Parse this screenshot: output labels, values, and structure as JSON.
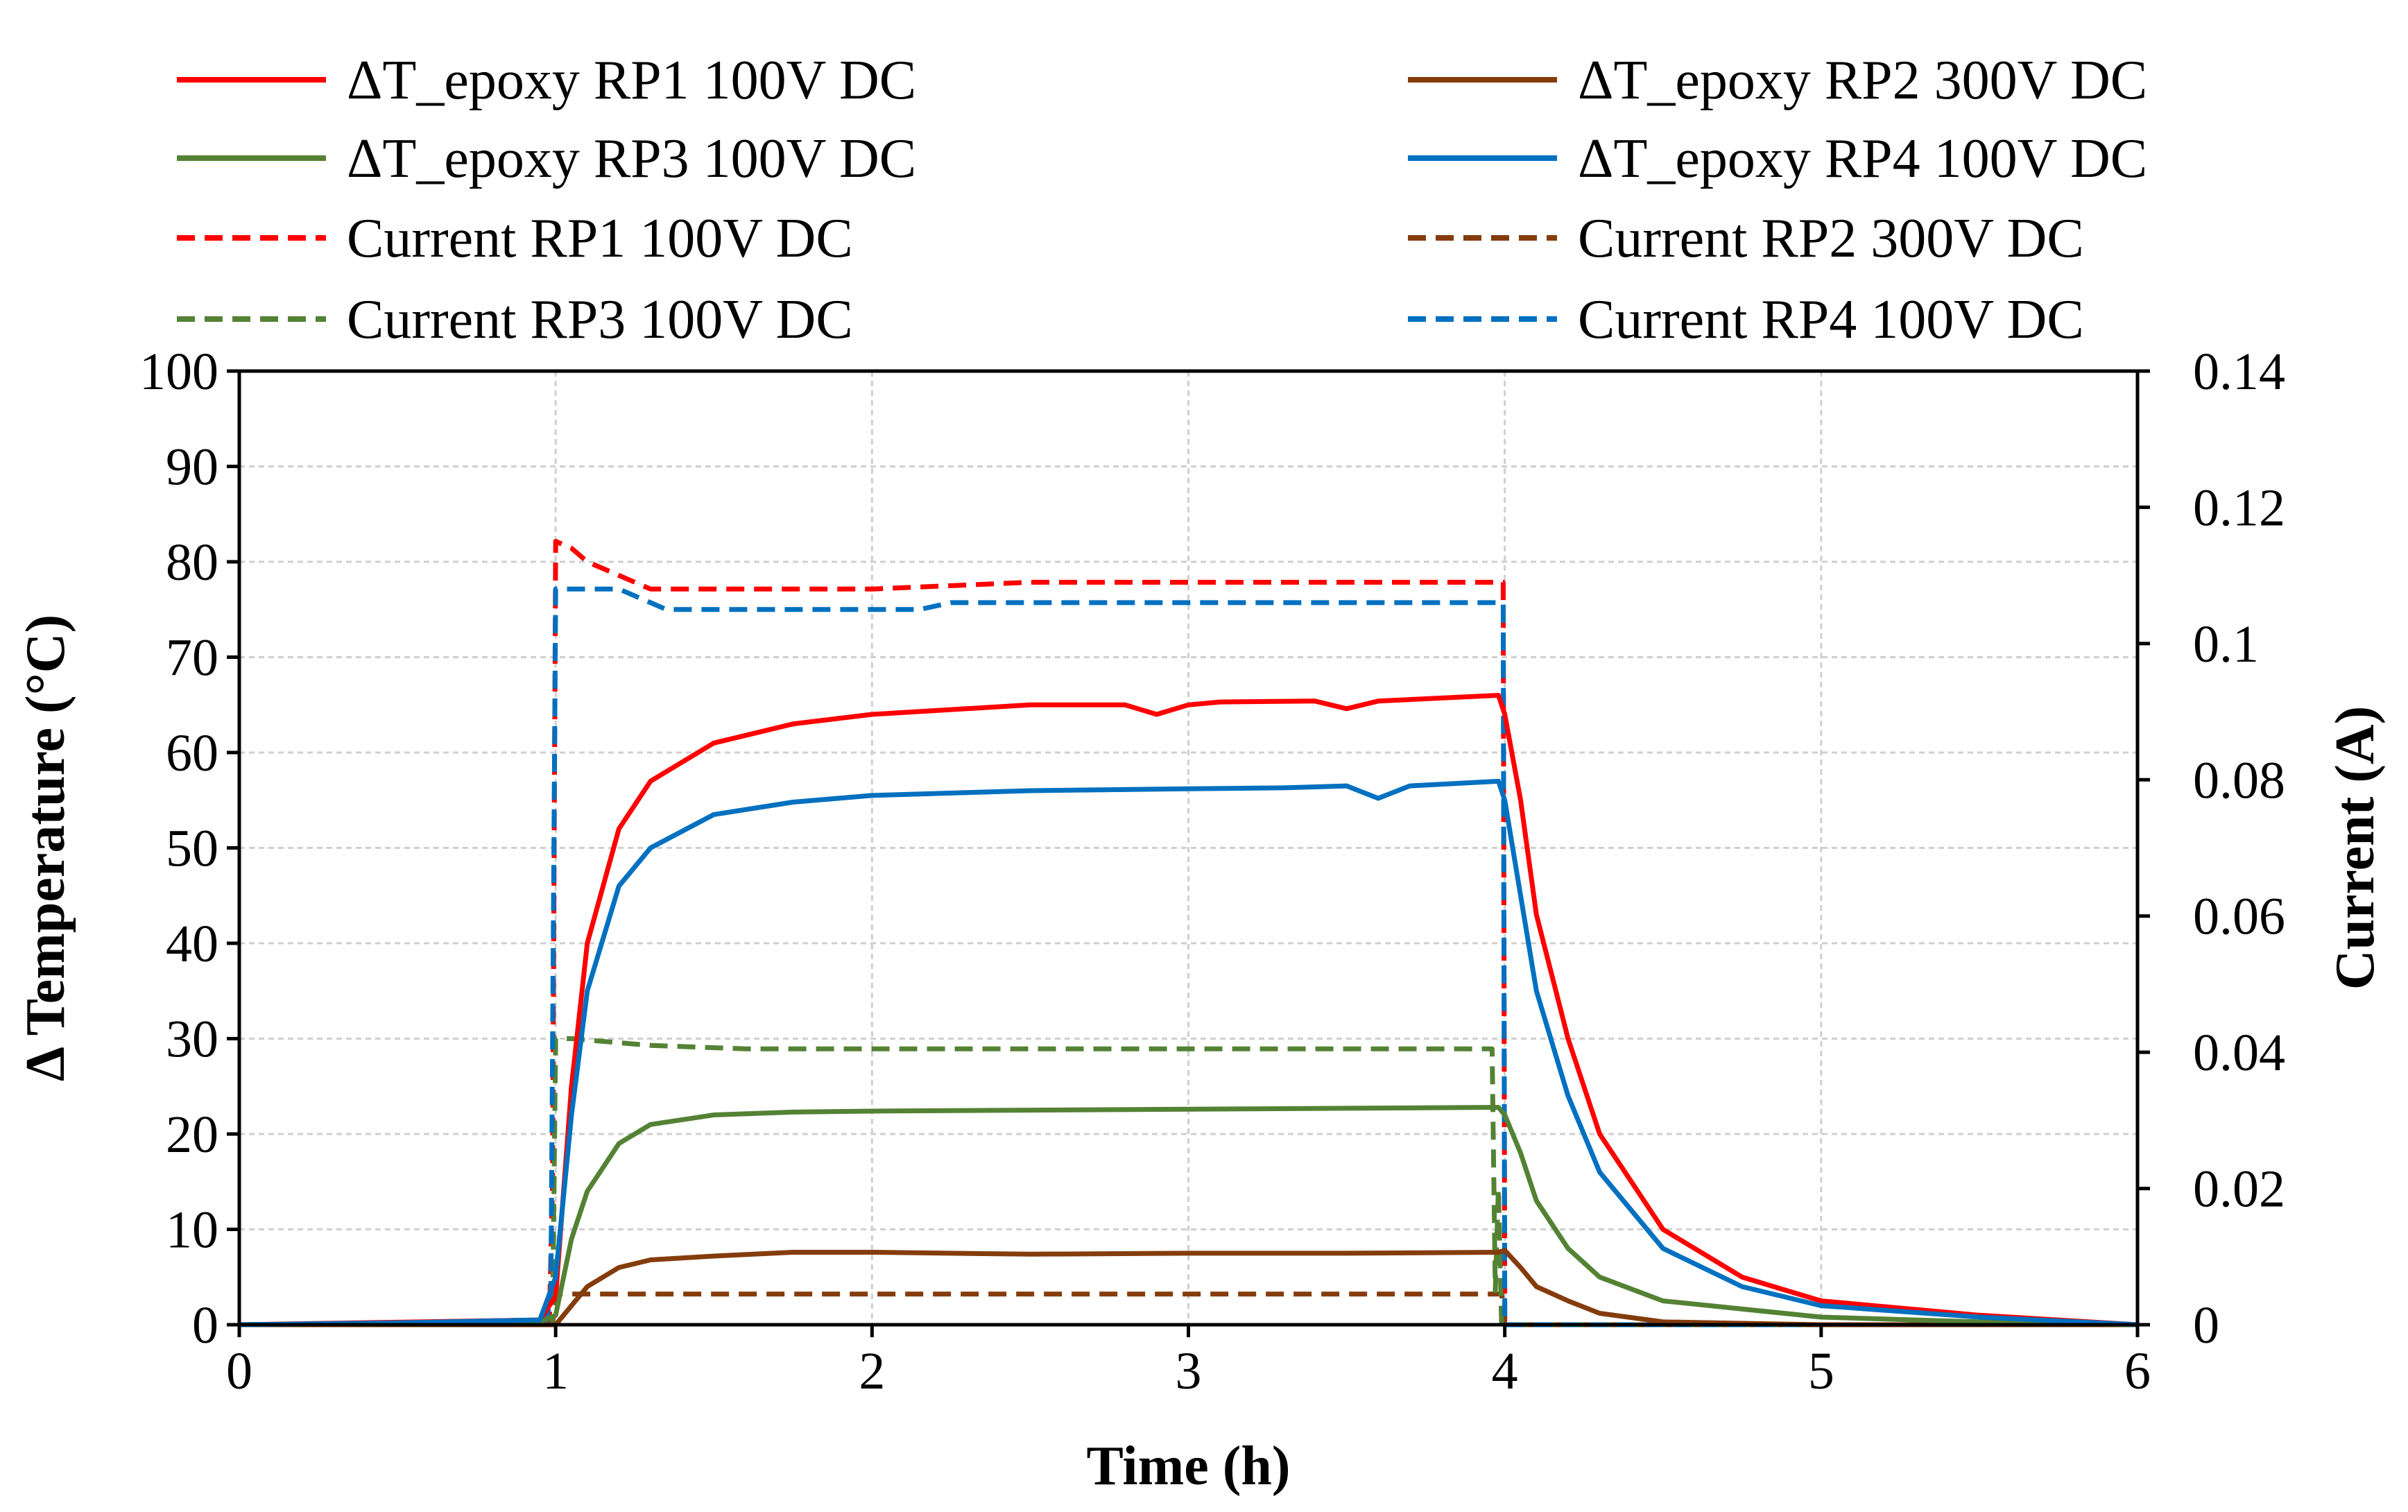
{
  "chart_data": {
    "type": "line",
    "title": "",
    "xlabel": "Time (h)",
    "ylabel": "Δ Temperature (°C)",
    "y2label": "Current (A)",
    "xlim": [
      0,
      6
    ],
    "ylim": [
      0,
      100
    ],
    "y2lim": [
      0,
      0.14
    ],
    "x_ticks": [
      "0",
      "1",
      "2",
      "3",
      "4",
      "5",
      "6"
    ],
    "y_ticks": [
      "0",
      "10",
      "20",
      "30",
      "40",
      "50",
      "60",
      "70",
      "80",
      "90",
      "100"
    ],
    "y2_ticks": [
      "0",
      "0.02",
      "0.04",
      "0.06",
      "0.08",
      "0.1",
      "0.12",
      "0.14"
    ],
    "grid": true,
    "legend_position": "top",
    "series": [
      {
        "name": "ΔT_epoxy RP1 100V DC",
        "axis": "left",
        "style": "solid",
        "color": "#ff0000",
        "x": [
          0,
          0.95,
          1.0,
          1.05,
          1.1,
          1.2,
          1.3,
          1.5,
          1.75,
          2.0,
          2.5,
          2.8,
          2.9,
          3.0,
          3.1,
          3.4,
          3.5,
          3.6,
          3.98,
          4.0,
          4.05,
          4.1,
          4.2,
          4.3,
          4.5,
          4.75,
          5.0,
          5.5,
          6.0
        ],
        "y": [
          0,
          0.5,
          3,
          25,
          40,
          52,
          57,
          61,
          63,
          64,
          65,
          65,
          64,
          65,
          65.3,
          65.4,
          64.6,
          65.4,
          66,
          64,
          55,
          43,
          30,
          20,
          10,
          5,
          2.5,
          1,
          0
        ]
      },
      {
        "name": "ΔT_epoxy RP2 300V DC",
        "axis": "left",
        "style": "solid",
        "color": "#843c0c",
        "x": [
          0,
          1.0,
          1.05,
          1.1,
          1.2,
          1.3,
          1.5,
          1.75,
          2.0,
          2.5,
          3.0,
          3.5,
          3.98,
          4.0,
          4.05,
          4.1,
          4.2,
          4.3,
          4.5,
          5.0,
          6.0
        ],
        "y": [
          0,
          0,
          2,
          4,
          6,
          6.8,
          7.2,
          7.6,
          7.6,
          7.4,
          7.5,
          7.5,
          7.6,
          7.8,
          6,
          4,
          2.5,
          1.2,
          0.3,
          0,
          0
        ]
      },
      {
        "name": "ΔT_epoxy RP3 100V DC",
        "axis": "left",
        "style": "solid",
        "color": "#548235",
        "x": [
          0,
          0.95,
          1.0,
          1.05,
          1.1,
          1.2,
          1.3,
          1.5,
          1.75,
          2.0,
          2.5,
          3.0,
          3.5,
          3.98,
          4.0,
          4.05,
          4.1,
          4.2,
          4.3,
          4.5,
          5.0,
          5.5,
          6.0
        ],
        "y": [
          0,
          0.3,
          1,
          9,
          14,
          19,
          21,
          22,
          22.3,
          22.4,
          22.5,
          22.6,
          22.7,
          22.8,
          22,
          18,
          13,
          8,
          5,
          2.5,
          0.8,
          0.3,
          0
        ]
      },
      {
        "name": "ΔT_epoxy RP4 100V DC",
        "axis": "left",
        "style": "solid",
        "color": "#0070c0",
        "x": [
          0,
          0.5,
          0.95,
          1.0,
          1.05,
          1.1,
          1.2,
          1.3,
          1.5,
          1.75,
          2.0,
          2.5,
          3.0,
          3.3,
          3.5,
          3.6,
          3.7,
          3.98,
          4.0,
          4.05,
          4.1,
          4.2,
          4.3,
          4.5,
          4.75,
          5.0,
          5.5,
          6.0
        ],
        "y": [
          0,
          0.2,
          0.5,
          5,
          22,
          35,
          46,
          50,
          53.5,
          54.8,
          55.5,
          56,
          56.2,
          56.3,
          56.5,
          55.2,
          56.5,
          57,
          55,
          45,
          35,
          24,
          16,
          8,
          4,
          2,
          0.8,
          0
        ]
      },
      {
        "name": "Current RP1 100V DC",
        "axis": "right",
        "style": "dashed",
        "color": "#ff0000",
        "x": [
          0,
          0.98,
          0.99,
          1.0,
          1.05,
          1.1,
          1.2,
          1.3,
          1.5,
          2.0,
          2.5,
          3.0,
          3.5,
          3.99,
          3.995,
          4.0,
          6.0
        ],
        "y": [
          0,
          0,
          0.02,
          0.115,
          0.114,
          0.112,
          0.11,
          0.108,
          0.108,
          0.108,
          0.109,
          0.109,
          0.109,
          0.109,
          0.109,
          0,
          0
        ]
      },
      {
        "name": "Current RP2 300V DC",
        "axis": "right",
        "style": "dashed",
        "color": "#843c0c",
        "x": [
          0,
          0.99,
          1.0,
          1.05,
          2.0,
          3.0,
          3.98,
          3.99,
          4.0,
          6.0
        ],
        "y": [
          0,
          0,
          0.0045,
          0.0045,
          0.0045,
          0.0045,
          0.0045,
          0.0045,
          0,
          0
        ]
      },
      {
        "name": "Current RP3 100V DC",
        "axis": "right",
        "style": "dashed",
        "color": "#548235",
        "x": [
          0,
          0.99,
          1.0,
          1.05,
          1.3,
          1.6,
          2.0,
          3.0,
          3.96,
          3.97,
          3.98,
          3.99,
          6.0
        ],
        "y": [
          0,
          0,
          0.042,
          0.042,
          0.041,
          0.0405,
          0.0405,
          0.0405,
          0.0405,
          0.005,
          0.02,
          0,
          0
        ]
      },
      {
        "name": "Current RP4 100V DC",
        "axis": "right",
        "style": "dashed",
        "color": "#0070c0",
        "x": [
          0,
          0.97,
          0.985,
          1.0,
          1.1,
          1.2,
          1.3,
          1.35,
          2.0,
          2.15,
          2.25,
          2.5,
          3.0,
          3.5,
          3.99,
          3.995,
          4.0,
          6.0
        ],
        "y": [
          0,
          0,
          0.005,
          0.108,
          0.108,
          0.108,
          0.106,
          0.105,
          0.105,
          0.105,
          0.106,
          0.106,
          0.106,
          0.106,
          0.106,
          0.106,
          0,
          0
        ]
      }
    ]
  }
}
